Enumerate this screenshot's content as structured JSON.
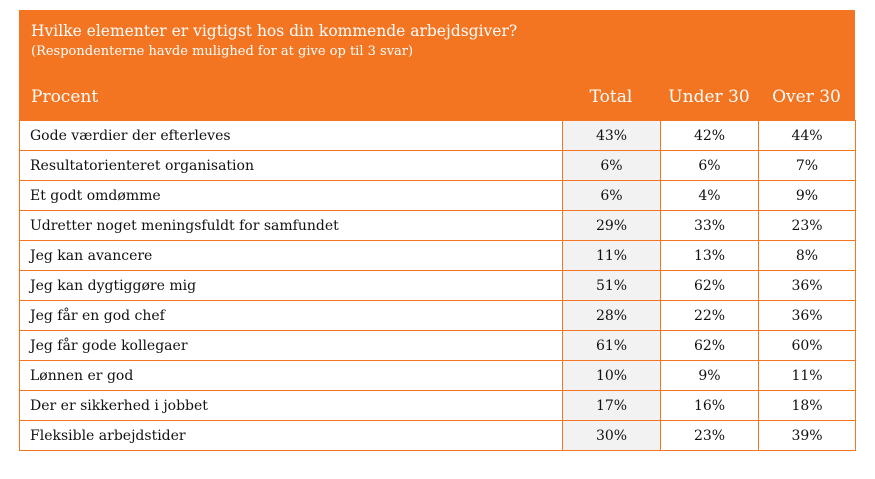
{
  "chart_data": {
    "type": "table",
    "title": "Hvilke elementer er vigtigst hos din kommende arbejdsgiver?",
    "subtitle": "(Respondenterne havde mulighed for at give op til 3 svar)",
    "columns": [
      "Procent",
      "Total",
      "Under 30",
      "Over 30"
    ],
    "rows": [
      {
        "label": "Gode værdier der efterleves",
        "values": [
          "43%",
          "42%",
          "44%"
        ]
      },
      {
        "label": "Resultatorienteret organisation",
        "values": [
          "6%",
          "6%",
          "7%"
        ]
      },
      {
        "label": "Et godt omdømme",
        "values": [
          "6%",
          "4%",
          "9%"
        ]
      },
      {
        "label": "Udretter noget meningsfuldt for samfundet",
        "values": [
          "29%",
          "33%",
          "23%"
        ]
      },
      {
        "label": "Jeg kan avancere",
        "values": [
          "11%",
          "13%",
          "8%"
        ]
      },
      {
        "label": "Jeg kan dygtiggøre mig",
        "values": [
          "51%",
          "62%",
          "36%"
        ]
      },
      {
        "label": "Jeg får en god chef",
        "values": [
          "28%",
          "22%",
          "36%"
        ]
      },
      {
        "label": "Jeg får gode kollegaer",
        "values": [
          "61%",
          "62%",
          "60%"
        ]
      },
      {
        "label": "Lønnen er god",
        "values": [
          "10%",
          "9%",
          "11%"
        ]
      },
      {
        "label": "Der er sikkerhed i jobbet",
        "values": [
          "17%",
          "16%",
          "18%"
        ]
      },
      {
        "label": "Fleksible arbejdstider",
        "values": [
          "30%",
          "23%",
          "39%"
        ]
      }
    ],
    "accent_color": "#F37522",
    "total_column_fill": "#F2F2F2"
  }
}
